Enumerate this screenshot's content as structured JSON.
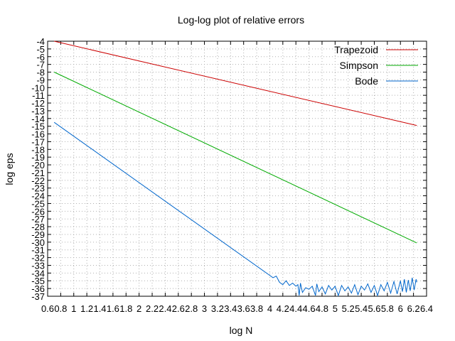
{
  "chart_data": {
    "type": "line",
    "title": "Log-log plot of relative errors",
    "xlabel": "log N",
    "ylabel": "log eps",
    "xlim": [
      0.6,
      6.4
    ],
    "ylim": [
      -37,
      -4
    ],
    "x_ticks": [
      "0.6",
      "0.8",
      "1",
      "1.2",
      "1.4",
      "1.6",
      "1.8",
      "2",
      "2.2",
      "2.4",
      "2.6",
      "2.8",
      "3",
      "3.2",
      "3.4",
      "3.6",
      "3.8",
      "4",
      "4.2",
      "4.4",
      "4.6",
      "4.8",
      "5",
      "5.2",
      "5.4",
      "5.6",
      "5.8",
      "6",
      "6.2",
      "6.4"
    ],
    "y_ticks": [
      "-4",
      "-5",
      "-6",
      "-7",
      "-8",
      "-9",
      "-10",
      "-11",
      "-12",
      "-13",
      "-14",
      "-15",
      "-16",
      "-17",
      "-18",
      "-19",
      "-20",
      "-21",
      "-22",
      "-23",
      "-24",
      "-25",
      "-26",
      "-27",
      "-28",
      "-29",
      "-30",
      "-31",
      "-32",
      "-33",
      "-34",
      "-35",
      "-36",
      "-37"
    ],
    "grid": true,
    "legend_position": "top-right",
    "series": [
      {
        "name": "Trapezoid",
        "color": "#cc0000",
        "points": [
          [
            0.7,
            -4.0
          ],
          [
            6.25,
            -14.9
          ]
        ]
      },
      {
        "name": "Simpson",
        "color": "#00aa00",
        "points": [
          [
            0.7,
            -8.0
          ],
          [
            6.25,
            -30.1
          ]
        ]
      },
      {
        "name": "Bode",
        "color": "#0066cc",
        "points": [
          [
            0.7,
            -14.5
          ],
          [
            4.0,
            -34.3
          ],
          [
            4.05,
            -34.6
          ],
          [
            4.1,
            -34.4
          ],
          [
            4.15,
            -35.2
          ],
          [
            4.2,
            -35.5
          ],
          [
            4.25,
            -35.0
          ],
          [
            4.3,
            -35.6
          ],
          [
            4.35,
            -35.3
          ],
          [
            4.4,
            -35.7
          ],
          [
            4.43,
            -35.5
          ],
          [
            4.45,
            -36.9
          ],
          [
            4.47,
            -35.3
          ],
          [
            4.5,
            -36.5
          ],
          [
            4.55,
            -35.9
          ],
          [
            4.6,
            -36.1
          ],
          [
            4.65,
            -35.7
          ],
          [
            4.7,
            -36.9
          ],
          [
            4.72,
            -35.4
          ],
          [
            4.75,
            -36.4
          ],
          [
            4.8,
            -35.8
          ],
          [
            4.85,
            -36.7
          ],
          [
            4.9,
            -35.6
          ],
          [
            4.95,
            -36.2
          ],
          [
            5.0,
            -35.7
          ],
          [
            5.05,
            -36.9
          ],
          [
            5.1,
            -35.6
          ],
          [
            5.15,
            -36.3
          ],
          [
            5.2,
            -35.8
          ],
          [
            5.25,
            -36.6
          ],
          [
            5.3,
            -35.5
          ],
          [
            5.35,
            -36.8
          ],
          [
            5.4,
            -35.7
          ],
          [
            5.45,
            -36.2
          ],
          [
            5.5,
            -35.4
          ],
          [
            5.55,
            -36.5
          ],
          [
            5.6,
            -35.6
          ],
          [
            5.65,
            -36.9
          ],
          [
            5.7,
            -35.5
          ],
          [
            5.75,
            -36.3
          ],
          [
            5.8,
            -35.2
          ],
          [
            5.85,
            -36.6
          ],
          [
            5.9,
            -35.1
          ],
          [
            5.95,
            -36.7
          ],
          [
            6.0,
            -35.0
          ],
          [
            6.03,
            -36.4
          ],
          [
            6.06,
            -34.8
          ],
          [
            6.09,
            -36.5
          ],
          [
            6.12,
            -34.9
          ],
          [
            6.15,
            -36.3
          ],
          [
            6.18,
            -34.6
          ],
          [
            6.21,
            -36.2
          ],
          [
            6.24,
            -34.8
          ],
          [
            6.25,
            -35.2
          ]
        ]
      }
    ]
  }
}
